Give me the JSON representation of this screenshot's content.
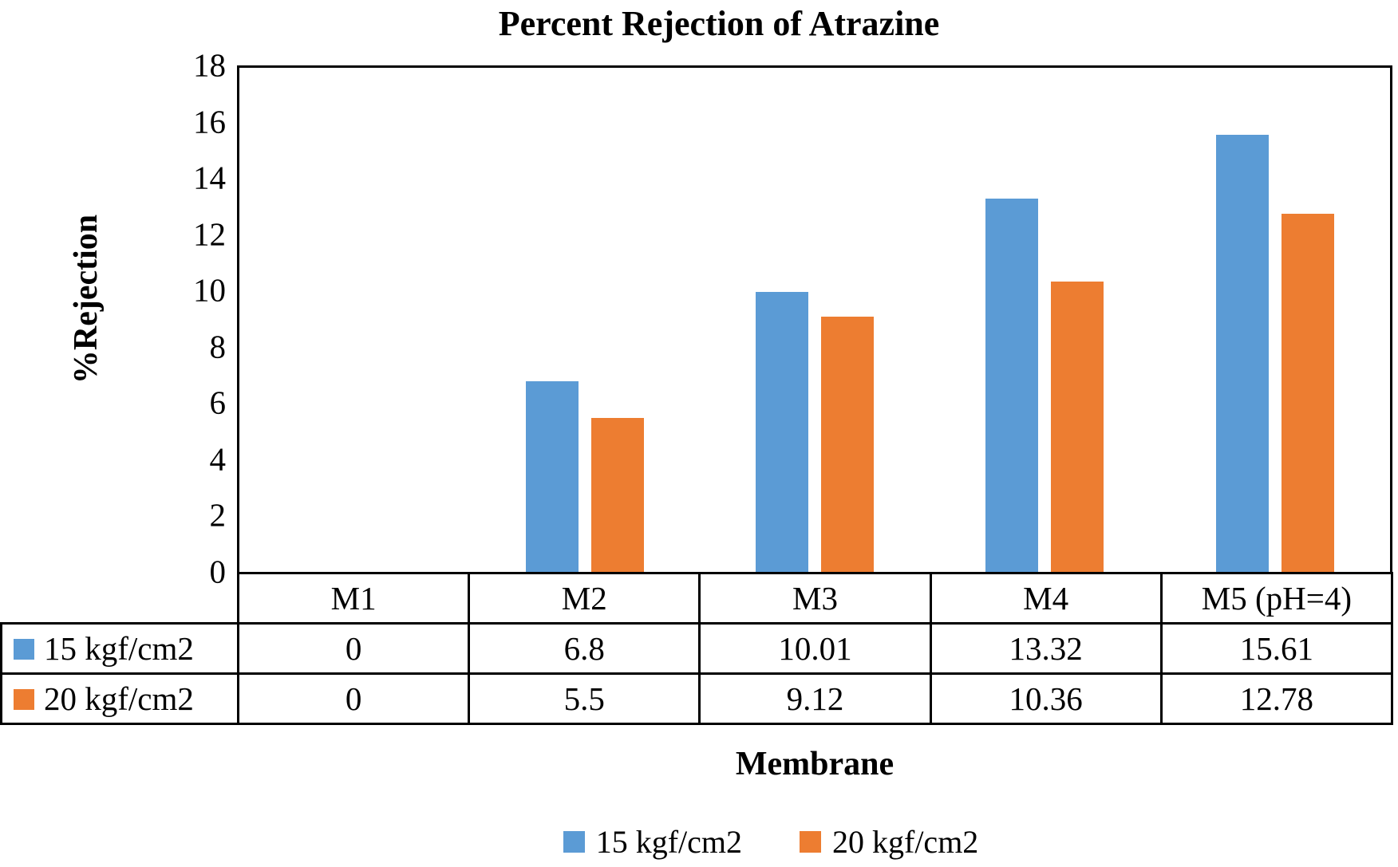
{
  "chart_data": {
    "type": "bar",
    "title": "Percent Rejection of Atrazine",
    "xlabel": "Membrane",
    "ylabel": "%Rejection",
    "categories": [
      "M1",
      "M2",
      "M3",
      "M4",
      "M5 (pH=4)"
    ],
    "series": [
      {
        "name": "15 kgf/cm2",
        "color": "#5B9BD5",
        "values": [
          0,
          6.8,
          10.01,
          13.32,
          15.61
        ]
      },
      {
        "name": "20 kgf/cm2",
        "color": "#ED7D31",
        "values": [
          0,
          5.5,
          9.12,
          10.36,
          12.78
        ]
      }
    ],
    "table_values": [
      [
        "0",
        "6.8",
        "10.01",
        "13.32",
        "15.61"
      ],
      [
        "0",
        "5.5",
        "9.12",
        "10.36",
        "12.78"
      ]
    ],
    "ylim": [
      0,
      18
    ],
    "yticks": [
      0,
      2,
      4,
      6,
      8,
      10,
      12,
      14,
      16,
      18
    ],
    "grid": false,
    "legend_position": "bottom",
    "data_table": true
  }
}
